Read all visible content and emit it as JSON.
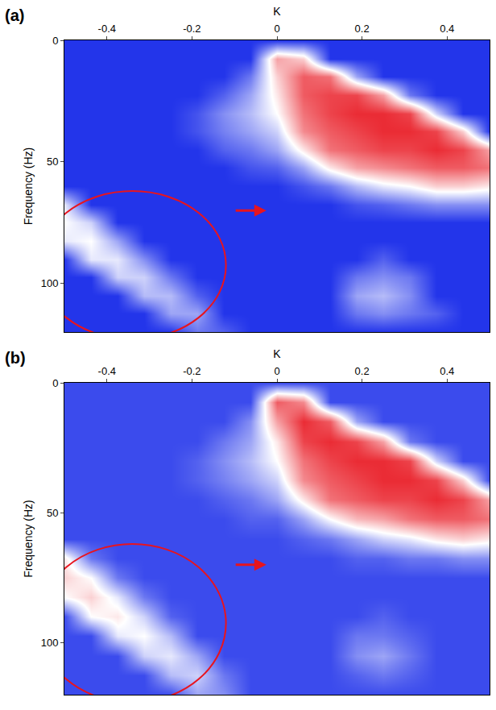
{
  "chart_data": [
    {
      "type": "heatmap",
      "title": "(a)",
      "x_label": "K",
      "y_label": "Frequency (Hz)",
      "xlim": [
        -0.5,
        0.5
      ],
      "xticks": [
        -0.4,
        -0.2,
        0,
        0.2,
        0.4
      ],
      "ylim": [
        120,
        0
      ],
      "yticks": [
        0,
        50,
        100
      ],
      "zlim": [
        0,
        1
      ],
      "x": [
        -0.5,
        -0.4375,
        -0.375,
        -0.3125,
        -0.25,
        -0.1875,
        -0.125,
        -0.0625,
        0,
        0.0625,
        0.125,
        0.1875,
        0.25,
        0.3125,
        0.375,
        0.4375,
        0.5
      ],
      "y": [
        0,
        7.5,
        15,
        22.5,
        30,
        37.5,
        45,
        52.5,
        60,
        67.5,
        75,
        82.5,
        90,
        97.5,
        105,
        112.5,
        120
      ],
      "cells": [
        [
          0.05,
          0.05,
          0.05,
          0.05,
          0.05,
          0.05,
          0.05,
          0.05,
          0.05,
          0.05,
          0.05,
          0.05,
          0.05,
          0.05,
          0.05,
          0.05,
          0.05
        ],
        [
          0.05,
          0.05,
          0.05,
          0.05,
          0.05,
          0.05,
          0.05,
          0.05,
          0.7,
          0.6,
          0.05,
          0.05,
          0.05,
          0.05,
          0.05,
          0.05,
          0.05
        ],
        [
          0.05,
          0.05,
          0.05,
          0.05,
          0.05,
          0.05,
          0.05,
          0.2,
          0.6,
          0.85,
          0.8,
          0.3,
          0.05,
          0.05,
          0.05,
          0.05,
          0.05
        ],
        [
          0.05,
          0.05,
          0.05,
          0.05,
          0.05,
          0.05,
          0.15,
          0.3,
          0.55,
          0.85,
          0.9,
          0.9,
          0.7,
          0.2,
          0.05,
          0.05,
          0.05
        ],
        [
          0.05,
          0.05,
          0.05,
          0.05,
          0.05,
          0.12,
          0.25,
          0.35,
          0.5,
          0.8,
          0.9,
          0.95,
          0.95,
          0.9,
          0.4,
          0.05,
          0.05
        ],
        [
          0.05,
          0.05,
          0.05,
          0.05,
          0.05,
          0.12,
          0.22,
          0.3,
          0.4,
          0.75,
          0.85,
          0.9,
          0.95,
          0.95,
          0.9,
          0.6,
          0.05
        ],
        [
          0.05,
          0.05,
          0.05,
          0.05,
          0.05,
          0.05,
          0.15,
          0.2,
          0.3,
          0.55,
          0.8,
          0.85,
          0.9,
          0.9,
          0.95,
          0.9,
          0.7
        ],
        [
          0.05,
          0.05,
          0.05,
          0.05,
          0.05,
          0.05,
          0.05,
          0.12,
          0.15,
          0.3,
          0.55,
          0.7,
          0.75,
          0.8,
          0.85,
          0.85,
          0.8
        ],
        [
          0.05,
          0.05,
          0.05,
          0.05,
          0.05,
          0.05,
          0.05,
          0.05,
          0.05,
          0.12,
          0.2,
          0.35,
          0.45,
          0.5,
          0.6,
          0.6,
          0.55
        ],
        [
          0.45,
          0.05,
          0.05,
          0.05,
          0.05,
          0.05,
          0.05,
          0.05,
          0.05,
          0.05,
          0.05,
          0.12,
          0.15,
          0.2,
          0.25,
          0.25,
          0.25
        ],
        [
          0.5,
          0.4,
          0.05,
          0.05,
          0.05,
          0.05,
          0.05,
          0.05,
          0.05,
          0.05,
          0.05,
          0.05,
          0.05,
          0.05,
          0.05,
          0.05,
          0.05
        ],
        [
          0.45,
          0.5,
          0.3,
          0.05,
          0.05,
          0.05,
          0.05,
          0.05,
          0.05,
          0.05,
          0.05,
          0.05,
          0.05,
          0.05,
          0.05,
          0.05,
          0.05
        ],
        [
          0.05,
          0.45,
          0.45,
          0.25,
          0.05,
          0.05,
          0.05,
          0.05,
          0.05,
          0.05,
          0.05,
          0.05,
          0.15,
          0.05,
          0.05,
          0.05,
          0.05
        ],
        [
          0.05,
          0.05,
          0.4,
          0.4,
          0.2,
          0.05,
          0.05,
          0.05,
          0.05,
          0.05,
          0.05,
          0.2,
          0.25,
          0.2,
          0.05,
          0.05,
          0.05
        ],
        [
          0.05,
          0.05,
          0.05,
          0.35,
          0.35,
          0.15,
          0.05,
          0.05,
          0.05,
          0.05,
          0.05,
          0.3,
          0.35,
          0.25,
          0.05,
          0.05,
          0.05
        ],
        [
          0.05,
          0.05,
          0.05,
          0.05,
          0.3,
          0.3,
          0.05,
          0.05,
          0.05,
          0.05,
          0.05,
          0.2,
          0.25,
          0.2,
          0.15,
          0.05,
          0.05
        ],
        [
          0.05,
          0.05,
          0.05,
          0.05,
          0.05,
          0.2,
          0.15,
          0.05,
          0.05,
          0.05,
          0.05,
          0.05,
          0.05,
          0.05,
          0.05,
          0.05,
          0.05
        ]
      ]
    },
    {
      "type": "heatmap",
      "title": "(b)",
      "x_label": "K",
      "y_label": "Frequency (Hz)",
      "xlim": [
        -0.5,
        0.5
      ],
      "xticks": [
        -0.4,
        -0.2,
        0,
        0.2,
        0.4
      ],
      "ylim": [
        120,
        0
      ],
      "yticks": [
        0,
        50,
        100
      ],
      "zlim": [
        0,
        1
      ],
      "x": [
        -0.5,
        -0.4375,
        -0.375,
        -0.3125,
        -0.25,
        -0.1875,
        -0.125,
        -0.0625,
        0,
        0.0625,
        0.125,
        0.1875,
        0.25,
        0.3125,
        0.375,
        0.4375,
        0.5
      ],
      "y": [
        0,
        7.5,
        15,
        22.5,
        30,
        37.5,
        45,
        52.5,
        60,
        67.5,
        75,
        82.5,
        90,
        97.5,
        105,
        112.5,
        120
      ],
      "cells": [
        [
          0.1,
          0.1,
          0.1,
          0.1,
          0.1,
          0.1,
          0.1,
          0.1,
          0.1,
          0.1,
          0.1,
          0.1,
          0.1,
          0.1,
          0.1,
          0.1,
          0.1
        ],
        [
          0.1,
          0.1,
          0.1,
          0.1,
          0.1,
          0.1,
          0.1,
          0.1,
          0.85,
          0.75,
          0.1,
          0.1,
          0.1,
          0.1,
          0.1,
          0.1,
          0.1
        ],
        [
          0.1,
          0.1,
          0.1,
          0.1,
          0.1,
          0.1,
          0.1,
          0.25,
          0.7,
          0.95,
          0.85,
          0.3,
          0.1,
          0.1,
          0.1,
          0.1,
          0.1
        ],
        [
          0.1,
          0.1,
          0.1,
          0.1,
          0.1,
          0.1,
          0.2,
          0.3,
          0.55,
          0.9,
          0.95,
          0.9,
          0.7,
          0.2,
          0.1,
          0.1,
          0.1
        ],
        [
          0.1,
          0.1,
          0.1,
          0.1,
          0.1,
          0.15,
          0.25,
          0.35,
          0.5,
          0.8,
          0.9,
          0.95,
          0.95,
          0.9,
          0.4,
          0.1,
          0.1
        ],
        [
          0.1,
          0.1,
          0.1,
          0.1,
          0.1,
          0.15,
          0.22,
          0.3,
          0.4,
          0.75,
          0.85,
          0.9,
          0.95,
          0.95,
          0.9,
          0.6,
          0.1
        ],
        [
          0.1,
          0.1,
          0.1,
          0.1,
          0.1,
          0.1,
          0.15,
          0.2,
          0.3,
          0.55,
          0.8,
          0.85,
          0.9,
          0.9,
          0.95,
          0.9,
          0.7
        ],
        [
          0.1,
          0.1,
          0.1,
          0.1,
          0.1,
          0.1,
          0.1,
          0.15,
          0.15,
          0.3,
          0.5,
          0.65,
          0.7,
          0.8,
          0.85,
          0.85,
          0.8
        ],
        [
          0.1,
          0.1,
          0.1,
          0.1,
          0.1,
          0.1,
          0.1,
          0.1,
          0.1,
          0.15,
          0.2,
          0.3,
          0.4,
          0.45,
          0.55,
          0.6,
          0.55
        ],
        [
          0.55,
          0.2,
          0.1,
          0.1,
          0.1,
          0.1,
          0.1,
          0.1,
          0.1,
          0.1,
          0.1,
          0.15,
          0.15,
          0.2,
          0.2,
          0.25,
          0.25
        ],
        [
          0.6,
          0.5,
          0.2,
          0.1,
          0.1,
          0.1,
          0.1,
          0.1,
          0.1,
          0.1,
          0.1,
          0.1,
          0.1,
          0.1,
          0.1,
          0.1,
          0.1
        ],
        [
          0.5,
          0.6,
          0.45,
          0.2,
          0.1,
          0.1,
          0.1,
          0.1,
          0.1,
          0.1,
          0.1,
          0.1,
          0.1,
          0.1,
          0.1,
          0.1,
          0.1
        ],
        [
          0.1,
          0.5,
          0.55,
          0.4,
          0.15,
          0.1,
          0.1,
          0.1,
          0.1,
          0.1,
          0.1,
          0.1,
          0.15,
          0.1,
          0.1,
          0.1,
          0.1
        ],
        [
          0.1,
          0.1,
          0.45,
          0.5,
          0.35,
          0.1,
          0.1,
          0.1,
          0.1,
          0.1,
          0.1,
          0.2,
          0.2,
          0.15,
          0.1,
          0.1,
          0.1
        ],
        [
          0.1,
          0.1,
          0.1,
          0.4,
          0.45,
          0.3,
          0.1,
          0.1,
          0.1,
          0.1,
          0.1,
          0.25,
          0.3,
          0.2,
          0.1,
          0.1,
          0.1
        ],
        [
          0.1,
          0.1,
          0.1,
          0.1,
          0.35,
          0.4,
          0.2,
          0.1,
          0.1,
          0.1,
          0.1,
          0.15,
          0.2,
          0.15,
          0.1,
          0.1,
          0.1
        ],
        [
          0.1,
          0.1,
          0.1,
          0.1,
          0.1,
          0.3,
          0.25,
          0.1,
          0.1,
          0.1,
          0.1,
          0.1,
          0.1,
          0.1,
          0.1,
          0.1,
          0.1
        ]
      ]
    }
  ]
}
